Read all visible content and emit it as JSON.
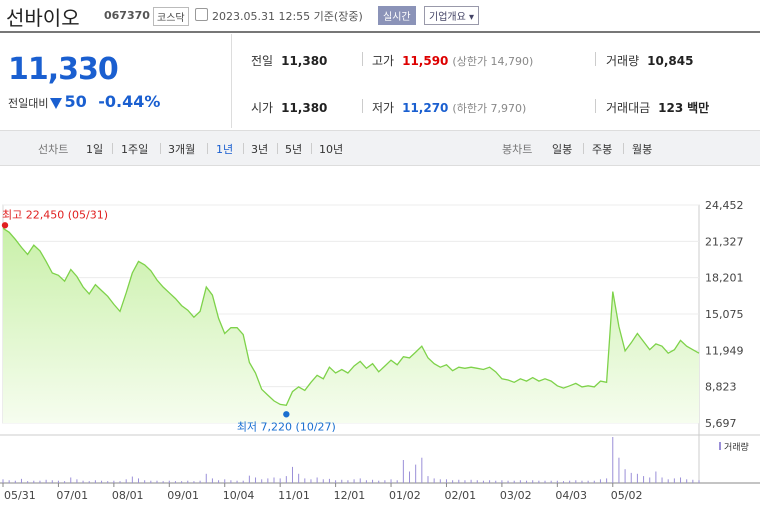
{
  "header": {
    "name": "선바이오",
    "code": "067370",
    "market": "코스닥",
    "date": "2023.05.31 12:55  기준(장중)",
    "realtime_button": "실시간",
    "corp_button": "기업개요 ▾"
  },
  "quote": {
    "price": "11,330",
    "change_label": "전일대비",
    "change_value": "50",
    "change_pct": "-0.44%"
  },
  "stats": {
    "prev_label": "전일",
    "prev": "11,380",
    "open_label": "시가",
    "open": "11,380",
    "high_label": "고가",
    "high": "11,590",
    "upper_limit": "(상한가 14,790)",
    "low_label": "저가",
    "low": "11,270",
    "lower_limit": "(하한가 7,970)",
    "volume_label": "거래량",
    "volume": "10,845",
    "amount_label": "거래대금",
    "amount": "123",
    "amount_unit": "백만"
  },
  "tabs": {
    "line_label": "선차트",
    "line_tabs": [
      "1일",
      "1주일",
      "3개월",
      "1년",
      "3년",
      "5년",
      "10년"
    ],
    "active": "1년",
    "candle_label": "봉차트",
    "candle_tabs": [
      "일봉",
      "주봉",
      "월봉"
    ]
  },
  "colors": {
    "line": "#7ed24a",
    "area_top": "#c9f0a9",
    "area_bottom": "#f6fdef",
    "high_marker": "#e02020",
    "low_marker": "#1a6fd0",
    "volume": "#9a8fd8"
  },
  "chart_data": {
    "type": "area",
    "y_ticks": [
      "24,452",
      "21,327",
      "18,201",
      "15,075",
      "11,949",
      "8,823",
      "5,697"
    ],
    "ylim": [
      5697,
      24452
    ],
    "x_ticks": [
      "05/31",
      "07/01",
      "08/01",
      "09/01",
      "10/04",
      "11/01",
      "12/01",
      "01/02",
      "02/01",
      "03/02",
      "04/03",
      "05/02"
    ],
    "high_annotation": "최고 22,450 (05/31)",
    "low_annotation": "최저 7,220 (10/27)",
    "volume_label": "거래량",
    "series": [
      {
        "values": [
          22450,
          22100,
          21500,
          20800,
          20200,
          21000,
          20500,
          19600,
          18600,
          18400,
          17900,
          18900,
          18300,
          17400,
          16800,
          17600,
          17100,
          16600,
          15900,
          15300,
          16900,
          18600,
          19600,
          19300,
          18800,
          18000,
          17400,
          16900,
          16400,
          15800,
          15400,
          14800,
          15300,
          17400,
          16700,
          14700,
          13400,
          13900,
          13900,
          13300,
          10900,
          10000,
          8600,
          8100,
          7600,
          7300,
          7220,
          8400,
          8800,
          8500,
          9200,
          9800,
          9500,
          10500,
          10000,
          10300,
          10000,
          10600,
          11000,
          10400,
          10800,
          10100,
          10600,
          11100,
          10700,
          11400,
          11300,
          11800,
          12300,
          11300,
          10800,
          10500,
          10700,
          10200,
          10500,
          10400,
          10500,
          10400,
          10300,
          10500,
          10100,
          9500,
          9400,
          9200,
          9500,
          9300,
          9600,
          9300,
          9500,
          9300,
          8900,
          8700,
          8900,
          9100,
          8800,
          8900,
          8800,
          9300,
          9200,
          17000,
          14000,
          11900,
          12600,
          13400,
          12700,
          12000,
          12500,
          12300,
          11700,
          12000,
          12800,
          12300,
          12000,
          11700
        ],
        "volume": [
          0.08,
          0.06,
          0.05,
          0.09,
          0.04,
          0.05,
          0.05,
          0.07,
          0.06,
          0.05,
          0.04,
          0.12,
          0.08,
          0.05,
          0.04,
          0.06,
          0.05,
          0.04,
          0.05,
          0.04,
          0.08,
          0.14,
          0.1,
          0.06,
          0.05,
          0.05,
          0.04,
          0.05,
          0.04,
          0.04,
          0.05,
          0.04,
          0.05,
          0.2,
          0.1,
          0.06,
          0.08,
          0.06,
          0.05,
          0.05,
          0.16,
          0.12,
          0.08,
          0.1,
          0.12,
          0.1,
          0.15,
          0.35,
          0.2,
          0.1,
          0.08,
          0.12,
          0.08,
          0.09,
          0.06,
          0.07,
          0.06,
          0.08,
          0.1,
          0.06,
          0.07,
          0.05,
          0.06,
          0.08,
          0.06,
          0.5,
          0.25,
          0.4,
          0.55,
          0.15,
          0.1,
          0.08,
          0.08,
          0.06,
          0.07,
          0.06,
          0.07,
          0.06,
          0.05,
          0.06,
          0.05,
          0.06,
          0.05,
          0.05,
          0.06,
          0.05,
          0.06,
          0.05,
          0.05,
          0.05,
          0.05,
          0.04,
          0.05,
          0.06,
          0.05,
          0.05,
          0.05,
          0.08,
          0.1,
          1.0,
          0.55,
          0.3,
          0.22,
          0.2,
          0.15,
          0.12,
          0.25,
          0.12,
          0.08,
          0.1,
          0.12,
          0.08,
          0.07,
          0.06
        ]
      }
    ]
  }
}
